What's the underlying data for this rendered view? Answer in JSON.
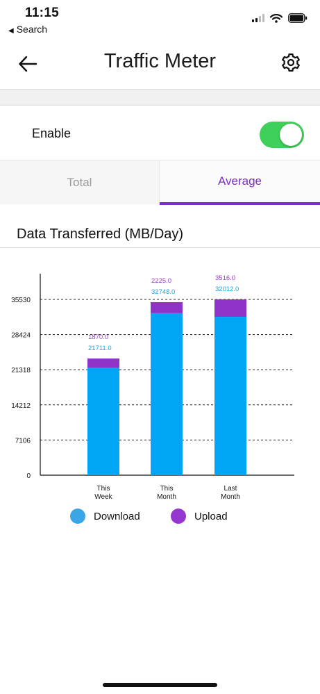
{
  "status_bar": {
    "time": "11:15",
    "back_app": "Search",
    "icons": [
      "signal-icon",
      "wifi-icon",
      "battery-icon"
    ]
  },
  "nav": {
    "title": "Traffic Meter",
    "back_icon": "arrow-left-icon",
    "settings_icon": "gear-icon"
  },
  "enable": {
    "label": "Enable",
    "on": true,
    "color": "#3ed05a"
  },
  "tabs": [
    {
      "label": "Total",
      "active": false
    },
    {
      "label": "Average",
      "active": true
    }
  ],
  "accent_color": "#7b2fc4",
  "section_title": "Data Transferred (MB/Day)",
  "chart_data": {
    "type": "bar",
    "stacked": true,
    "categories": [
      [
        "This",
        "Week"
      ],
      [
        "This",
        "Month"
      ],
      [
        "Last",
        "Month"
      ]
    ],
    "series": [
      {
        "name": "Download",
        "color": "#00a6f5",
        "label_color": "#1aa3e0",
        "values": [
          21711.0,
          32748.0,
          32012.0
        ]
      },
      {
        "name": "Upload",
        "color": "#8e32c8",
        "label_color": "#9b3fd0",
        "values": [
          1870.0,
          2225.0,
          3516.0
        ]
      }
    ],
    "value_labels": {
      "Download": [
        "21711.0",
        "32748.0",
        "32012.0"
      ],
      "Upload": [
        "1870.0",
        "2225.0",
        "3516.0"
      ]
    },
    "yticks": [
      0,
      7106,
      14212,
      21318,
      28424,
      35530
    ],
    "ylim": [
      0,
      35530
    ],
    "grid": true,
    "legend": "bottom"
  },
  "legend": [
    {
      "label": "Download",
      "color": "#3aa6e6"
    },
    {
      "label": "Upload",
      "color": "#9436cf"
    }
  ]
}
